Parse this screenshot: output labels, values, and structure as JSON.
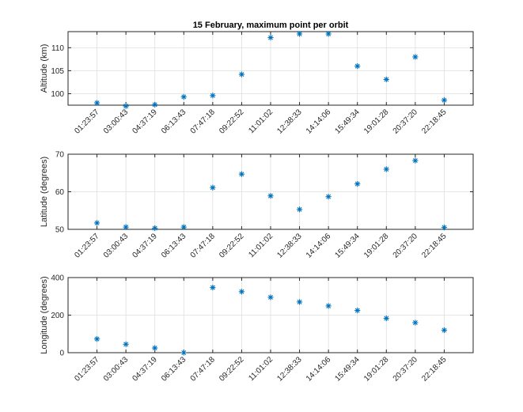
{
  "title": "15 February, maximum point per orbit",
  "marker_color": "#0072BD",
  "axis_color": "#262626",
  "grid_color": "#dfdfdf",
  "chart_data": [
    {
      "type": "scatter",
      "marker": "asterisk",
      "grid": true,
      "categories": [
        "01:23:57",
        "03:00:43",
        "04:37:19",
        "06:13:43",
        "07:47:18",
        "09:22:52",
        "11:01:02",
        "12:38:33",
        "14:14:06",
        "15:49:34",
        "19:01:28",
        "20:37:20",
        "22:18:45"
      ],
      "values": [
        98.0,
        97.3,
        97.6,
        99.3,
        99.6,
        104.2,
        112.2,
        113.0,
        113.0,
        106.0,
        103.1,
        108.0,
        98.6
      ],
      "ylabel": "Altitude (km)",
      "ylim": [
        97.5,
        113.5
      ],
      "yticks": [
        100,
        105,
        110
      ]
    },
    {
      "type": "scatter",
      "marker": "asterisk",
      "grid": true,
      "categories": [
        "01:23:57",
        "03:00:43",
        "04:37:19",
        "06:13:43",
        "07:47:18",
        "09:22:52",
        "11:01:02",
        "12:38:33",
        "14:14:06",
        "15:49:34",
        "19:01:28",
        "20:37:20",
        "22:18:45"
      ],
      "values": [
        51.7,
        50.6,
        50.3,
        50.6,
        61.1,
        64.7,
        58.9,
        55.3,
        58.7,
        62.1,
        66.0,
        68.3,
        50.5
      ],
      "ylabel": "Latitude (degrees)",
      "ylim": [
        50,
        70
      ],
      "yticks": [
        50,
        60,
        70
      ]
    },
    {
      "type": "scatter",
      "marker": "asterisk",
      "grid": true,
      "categories": [
        "01:23:57",
        "03:00:43",
        "04:37:19",
        "06:13:43",
        "07:47:18",
        "09:22:52",
        "11:01:02",
        "12:38:33",
        "14:14:06",
        "15:49:34",
        "19:01:28",
        "20:37:20",
        "22:18:45"
      ],
      "values": [
        73,
        45,
        25,
        0,
        347,
        325,
        295,
        270,
        249,
        225,
        183,
        160,
        120
      ],
      "ylabel": "Longitude (degrees)",
      "ylim": [
        0,
        400
      ],
      "yticks": [
        0,
        200,
        400
      ]
    }
  ]
}
